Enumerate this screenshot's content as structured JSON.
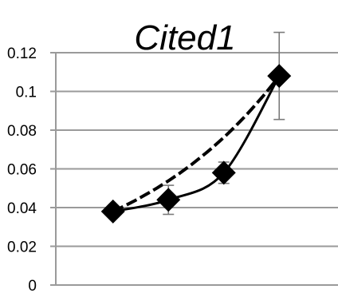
{
  "chart_data": {
    "type": "line",
    "title": "Cited1",
    "xlabel": "",
    "ylabel": "",
    "ylim": [
      0,
      0.12
    ],
    "y_ticks": [
      "0",
      "0.02",
      "0.04",
      "0.06",
      "0.08",
      "0.1",
      "0.12"
    ],
    "y_tick_values": [
      0,
      0.02,
      0.04,
      0.06,
      0.08,
      0.1,
      0.12
    ],
    "x_tick_labels": [],
    "grid": true,
    "series": [
      {
        "values": [
          0.038,
          0.044,
          0.058,
          0.108
        ],
        "error": [
          0.0,
          0.0075,
          0.0055,
          0.0225
        ],
        "marker": "diamond",
        "color": "#000000"
      }
    ],
    "colors": {
      "marker": "#000000",
      "gridline": "#9a9a9a",
      "errorbar": "#7a7a7a",
      "trendline": "#000000"
    }
  }
}
